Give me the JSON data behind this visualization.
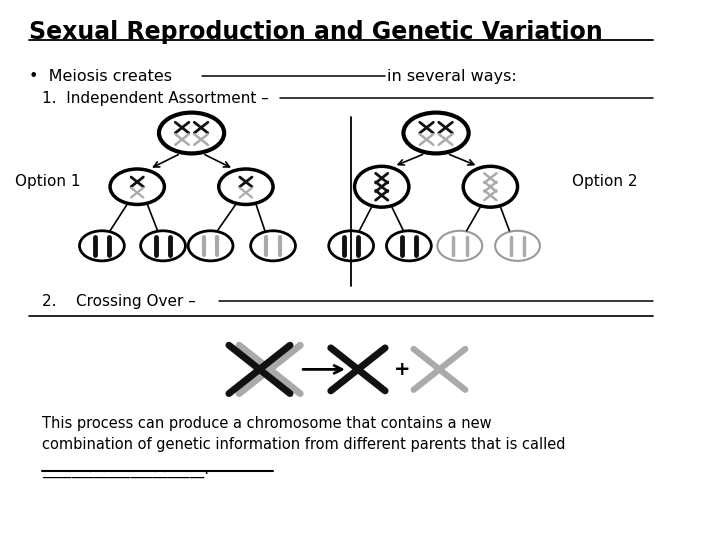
{
  "title": "Sexual Reproduction and Genetic Variation",
  "bullet_text": "Meiosis creates ",
  "blank1_text": "in several ways:",
  "item1_text": "1.  Independent Assortment – ",
  "item2_text": "2.    Crossing Over – ",
  "option1_label": "Option 1",
  "option2_label": "Option 2",
  "text_line2": "This process can produce a chromosome that contains a new",
  "text_line3": "combination of genetic information from different parents that is called",
  "text_line4": "______________________.",
  "bg_color": "#ffffff",
  "text_color": "#000000",
  "gray_color": "#aaaaaa",
  "dark_color": "#111111"
}
